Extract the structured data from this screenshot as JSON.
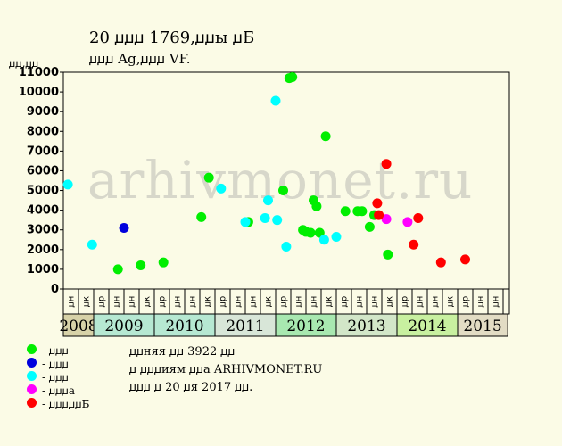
{
  "header": {
    "title": "20 ꙡꙡꙡ 1769,ꙡꙡы ꙡБ",
    "subtitle": "ꙡꙡꙡ Ag,ꙡꙡꙡ VF.",
    "ylabel": "ꙡꙡ,ꙡꙡ"
  },
  "watermark": "arhivmonet.ru",
  "notes": [
    "ꙡꙡняя ꙡꙡ 3922 ꙡꙡ",
    "ꙡ ꙡꙡꙡиям ꙡꙡа ARHIVMONET.RU",
    "ꙡꙡꙡ ꙡ 20 ꙡя 2017 ꙡꙡ."
  ],
  "legend": [
    {
      "label": "- ꙡꙡꙡ",
      "color": "#00ee00"
    },
    {
      "label": "- ꙡꙡꙡ",
      "color": "#0000dd"
    },
    {
      "label": "- ꙡꙡꙡ",
      "color": "#00ffff"
    },
    {
      "label": "- ꙡꙡꙡа",
      "color": "#ff00ff"
    },
    {
      "label": "- ꙡꙡꙡꙡꙡБ",
      "color": "#ff0000"
    }
  ],
  "chart_data": {
    "type": "scatter",
    "ylim": [
      0,
      11000
    ],
    "yticks": [
      0,
      1000,
      2000,
      3000,
      4000,
      5000,
      6000,
      7000,
      8000,
      9000,
      10000,
      11000
    ],
    "month_labels": [
      "ꙡн",
      "ꙡк",
      "ꙡр",
      "ꙡн",
      "ꙡн",
      "ꙡк",
      "ꙡр",
      "ꙡн",
      "ꙡн",
      "ꙡк",
      "ꙡр",
      "ꙡн",
      "ꙡн",
      "ꙡк",
      "ꙡр",
      "ꙡн",
      "ꙡн",
      "ꙡк",
      "ꙡр",
      "ꙡн",
      "ꙡн",
      "ꙡк",
      "ꙡр",
      "ꙡн",
      "ꙡн",
      "ꙡк",
      "ꙡр",
      "ꙡн",
      "ꙡн",
      "ꙡк",
      "ꙡр",
      "ꙡн",
      "ꙡн"
    ],
    "years": [
      {
        "label": "2008",
        "start": 0,
        "span": 2,
        "color": "#d7d2a8"
      },
      {
        "label": "2009",
        "start": 2,
        "span": 4,
        "color": "#b6e8d2"
      },
      {
        "label": "2010",
        "start": 6,
        "span": 4,
        "color": "#b6e8d2"
      },
      {
        "label": "2011",
        "start": 10,
        "span": 4,
        "color": "#d8e6d8"
      },
      {
        "label": "2012",
        "start": 14,
        "span": 4,
        "color": "#a8e8b0"
      },
      {
        "label": "2013",
        "start": 18,
        "span": 4,
        "color": "#d2e6c8"
      },
      {
        "label": "2014",
        "start": 22,
        "span": 4,
        "color": "#c8f0a0"
      },
      {
        "label": "2015",
        "start": 26,
        "span": 3.3,
        "color": "#e2dcc4"
      }
    ],
    "series": [
      {
        "color": "#00ee00",
        "points": [
          [
            3.6,
            1000
          ],
          [
            5.1,
            1200
          ],
          [
            6.6,
            1350
          ],
          [
            9.1,
            3650
          ],
          [
            9.6,
            5650
          ],
          [
            12.2,
            3400
          ],
          [
            14.5,
            5000
          ],
          [
            14.9,
            10700
          ],
          [
            15.1,
            10750
          ],
          [
            15.8,
            3000
          ],
          [
            16.0,
            2900
          ],
          [
            16.3,
            2850
          ],
          [
            16.5,
            4500
          ],
          [
            16.7,
            4200
          ],
          [
            16.9,
            2850
          ],
          [
            17.3,
            7750
          ],
          [
            18.6,
            3950
          ],
          [
            19.4,
            3950
          ],
          [
            19.7,
            3950
          ],
          [
            20.2,
            3150
          ],
          [
            20.5,
            3750
          ],
          [
            21.4,
            1750
          ]
        ]
      },
      {
        "color": "#0000dd",
        "points": [
          [
            4.0,
            3100
          ]
        ]
      },
      {
        "color": "#00ffff",
        "points": [
          [
            0.3,
            5300
          ],
          [
            1.9,
            2250
          ],
          [
            10.4,
            5100
          ],
          [
            12.0,
            3400
          ],
          [
            13.3,
            3600
          ],
          [
            13.5,
            4500
          ],
          [
            14.0,
            9550
          ],
          [
            14.1,
            3500
          ],
          [
            14.7,
            2150
          ],
          [
            17.2,
            2500
          ],
          [
            18.0,
            2650
          ]
        ]
      },
      {
        "color": "#ff00ff",
        "points": [
          [
            21.3,
            3550
          ],
          [
            22.7,
            3400
          ]
        ]
      },
      {
        "color": "#ff0000",
        "points": [
          [
            20.7,
            4350
          ],
          [
            20.8,
            3750
          ],
          [
            21.3,
            6350
          ],
          [
            23.1,
            2250
          ],
          [
            23.4,
            3600
          ],
          [
            24.9,
            1350
          ],
          [
            26.5,
            1500
          ]
        ]
      }
    ]
  }
}
